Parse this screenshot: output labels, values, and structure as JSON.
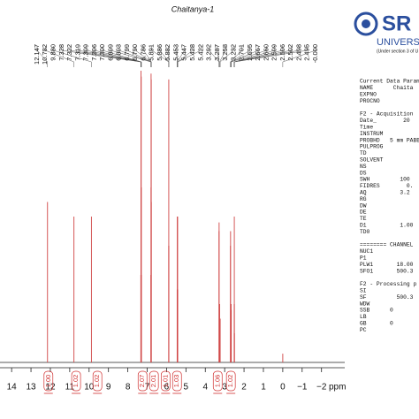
{
  "chart_data": {
    "type": "nmr",
    "title": "Chaitanya-1",
    "x_label": "ppm",
    "xlim": [
      14.6,
      -3.2
    ],
    "ylim": [
      0,
      100
    ],
    "xticks": [
      14,
      13,
      12,
      11,
      10,
      9,
      8,
      7,
      6,
      5,
      4,
      3,
      2,
      1,
      0,
      {
        "value": -1,
        "label": "−1"
      },
      {
        "value": -2,
        "label": "−2"
      }
    ],
    "color": "#d04545",
    "x": [
      12.147,
      10.782,
      {
        "value": 9.88,
        "label": "9.880"
      },
      7.328,
      7.322,
      7.319,
      7.309,
      7.306,
      {
        "value": 7.3,
        "label": "7.300"
      },
      6.809,
      6.803,
      6.799,
      {
        "value": 6.79,
        "label": "6.790"
      },
      6.786,
      5.891,
      5.886,
      5.882,
      5.453,
      5.447,
      5.428,
      5.422,
      3.292,
      3.287,
      3.258,
      3.232,
      2.701,
      2.695,
      2.667,
      {
        "value": 2.66,
        "label": "2.660"
      },
      2.509,
      2.506,
      2.502,
      2.498,
      2.495,
      {
        "value": 0,
        "label": "-0.000"
      }
    ],
    "values": [
      55,
      50,
      50,
      30,
      60,
      100,
      98,
      60,
      30,
      30,
      60,
      99,
      97,
      55,
      40,
      97,
      40,
      25,
      50,
      50,
      25,
      45,
      48,
      20,
      15,
      40,
      45,
      20,
      18,
      10,
      20,
      50,
      20,
      10,
      3
    ],
    "integrals": {
      "x": [
        12.1,
        10.67,
        9.57,
        7.24,
        6.65,
        6.05,
        5.46,
        3.36,
        2.68
      ],
      "values": [
        {
          "value": 1,
          "label": "1.00"
        },
        1.02,
        1.02,
        2.07,
        2.01,
        1.01,
        1.03,
        1.06,
        1.02
      ],
      "color": "#d03030"
    }
  },
  "side_panel": {
    "logo": "SR",
    "logo_line": "UNIVERS",
    "logo_sub": "(Under section 3 of U",
    "blocks": [
      [
        "Current Data Param",
        "NAME      Chaita",
        "EXPNO",
        "PROCNO"
      ],
      [
        "F2 - Acquisition",
        "Date_        20",
        "Time",
        "INSTRUM",
        "PROBHD   5 mm PABB",
        "PULPROG",
        "TD",
        "SOLVENT",
        "NS",
        "DS",
        "SWH         100",
        "FIDRES        0.",
        "AQ          3.2",
        "RG",
        "DW",
        "DE",
        "TE",
        "D1          1.00",
        "TD0"
      ],
      [
        "======== CHANNEL",
        "NUC1",
        "P1",
        "PLW1       18.00",
        "SFO1       500.3"
      ],
      [
        "F2 - Processing p",
        "SI",
        "SF         500.3",
        "WDW",
        "SSB      0",
        "LB",
        "GB       0",
        "PC"
      ]
    ]
  }
}
